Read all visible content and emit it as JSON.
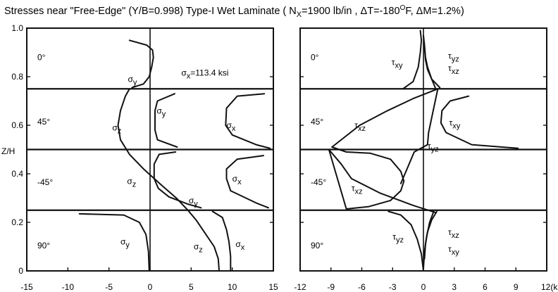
{
  "chart_data": {
    "type": "line",
    "title": "Stresses near \"Free-Edge\" (Y/B=0.998) Type-I Wet Laminate ( N",
    "title_sub": "X",
    "title_mid": "=1900 lb/in , ΔT=-180",
    "title_sup": "O",
    "title_end": "F, ΔM=1.2%)",
    "ylabel": "Z/H",
    "ylim": [
      0,
      1
    ],
    "y_ticks": [
      "0",
      "0.2",
      "0.4",
      "0.6",
      "0.8",
      "1.0"
    ],
    "grid": false,
    "ply_boundaries": [
      0.25,
      0.5,
      0.75
    ],
    "panels": [
      {
        "name": "left",
        "xlim": [
          -15,
          15
        ],
        "x_ticks": [
          "-15",
          "-10",
          "-5",
          "0",
          "5",
          "10",
          "15"
        ],
        "ply_labels": [
          "0°",
          "45°",
          "-45°",
          "90°"
        ],
        "annotation": "σ",
        "annotation_sub": "x",
        "annotation_text": "=113.4 ksi",
        "curve_labels": [
          {
            "base": "σ",
            "sub": "y",
            "x": -2.7,
            "y": 0.79
          },
          {
            "base": "σ",
            "sub": "y",
            "x": 0.8,
            "y": 0.66
          },
          {
            "base": "σ",
            "sub": "z",
            "x": -4.6,
            "y": 0.59
          },
          {
            "base": "σ",
            "sub": "x",
            "x": 9.3,
            "y": 0.6
          },
          {
            "base": "σ",
            "sub": "z",
            "x": -2.8,
            "y": 0.37
          },
          {
            "base": "σ",
            "sub": "x",
            "x": 10.0,
            "y": 0.38
          },
          {
            "base": "σ",
            "sub": "y",
            "x": 4.7,
            "y": 0.29
          },
          {
            "base": "σ",
            "sub": "y",
            "x": -3.6,
            "y": 0.12
          },
          {
            "base": "σ",
            "sub": "z",
            "x": 5.3,
            "y": 0.1
          },
          {
            "base": "σ",
            "sub": "x",
            "x": 10.4,
            "y": 0.11
          }
        ],
        "series": [
          {
            "name": "σy (0°)",
            "x": [
              -2.2,
              -0.8,
              -0.1,
              0.2,
              0.4,
              0.3,
              -0.4,
              -2.5
            ],
            "y": [
              0.755,
              0.77,
              0.8,
              0.84,
              0.88,
              0.91,
              0.93,
              0.95
            ]
          },
          {
            "name": "σz",
            "x": [
              -2.5,
              -3.0,
              -3.6,
              -3.9,
              -3.6,
              -2.5,
              -0.8,
              1.5,
              3.2,
              4.6,
              5.6,
              6.6,
              7.8,
              8.3,
              8.4
            ],
            "y": [
              0.75,
              0.72,
              0.66,
              0.6,
              0.54,
              0.48,
              0.42,
              0.35,
              0.3,
              0.25,
              0.21,
              0.16,
              0.1,
              0.05,
              0.0
            ]
          },
          {
            "name": "σy (45°)",
            "x": [
              3.0,
              0.9,
              0.6,
              0.6,
              0.9,
              3.3
            ],
            "y": [
              0.73,
              0.7,
              0.66,
              0.58,
              0.54,
              0.51
            ]
          },
          {
            "name": "σx (45°)",
            "x": [
              13.9,
              10.6,
              9.3,
              9.2,
              10.0,
              12.9,
              14.6
            ],
            "y": [
              0.73,
              0.72,
              0.67,
              0.6,
              0.56,
              0.52,
              0.505
            ]
          },
          {
            "name": "σy (-45°)",
            "x": [
              3.1,
              1.1,
              0.5,
              0.5,
              1.0,
              2.3,
              4.6,
              6.2
            ],
            "y": [
              0.49,
              0.48,
              0.44,
              0.38,
              0.34,
              0.305,
              0.275,
              0.26
            ]
          },
          {
            "name": "σx (-45°)",
            "x": [
              13.8,
              10.6,
              9.3,
              9.3,
              9.8,
              12.9,
              14.4
            ],
            "y": [
              0.475,
              0.46,
              0.42,
              0.38,
              0.33,
              0.28,
              0.26
            ]
          },
          {
            "name": "σy (90°)",
            "x": [
              -8.6,
              -3.2,
              -1.3,
              -0.5,
              -0.2,
              -0.1
            ],
            "y": [
              0.235,
              0.23,
              0.2,
              0.15,
              0.08,
              0.0
            ]
          },
          {
            "name": "σx (90°)",
            "x": [
              7.6,
              8.8,
              9.3,
              9.6,
              9.8,
              9.8
            ],
            "y": [
              0.245,
              0.22,
              0.17,
              0.12,
              0.06,
              0.0
            ]
          }
        ]
      },
      {
        "name": "right",
        "xlim": [
          -12,
          12
        ],
        "x_ticks": [
          "-12",
          "-9",
          "-6",
          "-3",
          "0",
          "3",
          "6",
          "9",
          "12"
        ],
        "x_unit": "(ksi)",
        "ply_labels": [
          "0°",
          "45°",
          "-45°",
          "90°"
        ],
        "curve_labels": [
          {
            "base": "τ",
            "sub": "xy",
            "x": -3.1,
            "y": 0.86
          },
          {
            "base": "τ",
            "sub": "yz",
            "x": 2.4,
            "y": 0.885
          },
          {
            "base": "τ",
            "sub": "xz",
            "x": 2.4,
            "y": 0.835
          },
          {
            "base": "τ",
            "sub": "xz",
            "x": -6.7,
            "y": 0.6
          },
          {
            "base": "τ",
            "sub": "xy",
            "x": 2.5,
            "y": 0.61
          },
          {
            "base": "τ",
            "sub": "yz",
            "x": 0.4,
            "y": 0.515
          },
          {
            "base": "τ",
            "sub": "xz",
            "x": -7.0,
            "y": 0.34
          },
          {
            "base": "τ",
            "sub": "yz",
            "x": -3.0,
            "y": 0.14
          },
          {
            "base": "τ",
            "sub": "xz",
            "x": 2.4,
            "y": 0.16
          },
          {
            "base": "τ",
            "sub": "xy",
            "x": 2.4,
            "y": 0.09
          }
        ],
        "series": [
          {
            "name": "τxy (0°)",
            "x": [
              -2.0,
              -1.0,
              -0.5,
              -0.3,
              -0.2,
              -0.3
            ],
            "y": [
              0.75,
              0.78,
              0.84,
              0.9,
              0.95,
              0.99
            ]
          },
          {
            "name": "τyz (0°)",
            "x": [
              1.6,
              0.8,
              0.4,
              0.2,
              0.1,
              0.0
            ],
            "y": [
              0.755,
              0.79,
              0.84,
              0.88,
              0.93,
              0.97
            ]
          },
          {
            "name": "τxz (0°)",
            "x": [
              1.2,
              0.8,
              0.4,
              0.2,
              0.1
            ],
            "y": [
              0.75,
              0.79,
              0.83,
              0.87,
              0.92
            ]
          },
          {
            "name": "τxz (45°/-45°)",
            "x": [
              1.4,
              -1.0,
              -3.5,
              -6.2,
              -8.9,
              -7.5,
              -5.2,
              -3.2,
              -2.2,
              -1.9,
              -2.2,
              -3.2,
              -5.3,
              -7.5,
              -9.2,
              -8.0,
              -7.0,
              -4.2,
              -1.0,
              1.2
            ],
            "y": [
              0.75,
              0.71,
              0.66,
              0.6,
              0.51,
              0.49,
              0.485,
              0.46,
              0.41,
              0.37,
              0.33,
              0.29,
              0.265,
              0.255,
              0.5,
              0.44,
              0.38,
              0.32,
              0.27,
              0.24
            ]
          },
          {
            "name": "τxy (45°)",
            "x": [
              4.4,
              2.6,
              1.8,
              1.7,
              2.2,
              4.7,
              9.2
            ],
            "y": [
              0.72,
              0.7,
              0.66,
              0.61,
              0.57,
              0.52,
              0.505
            ]
          },
          {
            "name": "τyz (45°/-45°)",
            "x": [
              1.4,
              0.9,
              0.5,
              0.4,
              -0.9,
              -1.6,
              -2.2
            ],
            "y": [
              0.75,
              0.65,
              0.57,
              0.52,
              0.49,
              0.42,
              0.36
            ]
          },
          {
            "name": "τyz (90°)",
            "x": [
              -3.4,
              -2.2,
              -1.2,
              -0.6,
              -0.2,
              0.0
            ],
            "y": [
              0.245,
              0.23,
              0.19,
              0.13,
              0.07,
              0.0
            ]
          },
          {
            "name": "τxz (90°)",
            "x": [
              1.3,
              0.8,
              0.4,
              0.2,
              0.1
            ],
            "y": [
              0.245,
              0.21,
              0.16,
              0.11,
              0.05
            ]
          },
          {
            "name": "τxy (90°)",
            "x": [
              1.0,
              0.6,
              0.3,
              0.1,
              0.0
            ],
            "y": [
              0.245,
              0.2,
              0.14,
              0.08,
              0.01
            ]
          }
        ]
      }
    ]
  }
}
